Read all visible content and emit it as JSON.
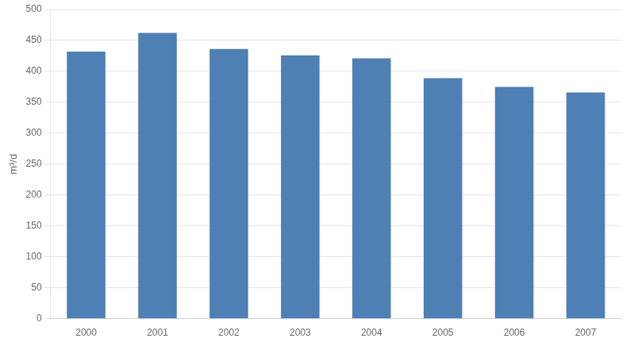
{
  "chart_data": {
    "type": "bar",
    "ylabel": "m³/d",
    "categories": [
      "2000",
      "2001",
      "2002",
      "2003",
      "2004",
      "2005",
      "2006",
      "2007"
    ],
    "values": [
      432,
      462,
      436,
      426,
      421,
      389,
      375,
      366
    ],
    "color": "#4e7fb5",
    "ylim": [
      0,
      500
    ],
    "yticks": [
      0,
      50,
      100,
      150,
      200,
      250,
      300,
      350,
      400,
      450,
      500
    ],
    "grid": true
  }
}
